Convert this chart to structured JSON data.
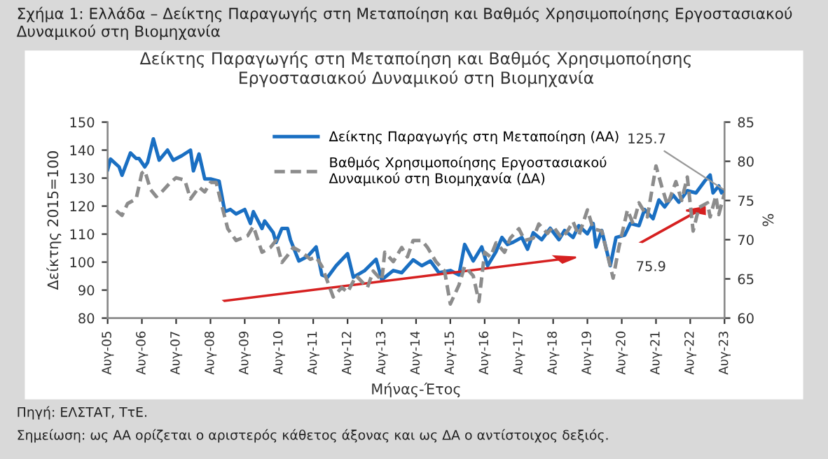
{
  "chart_data": {
    "type": "line",
    "title": "Σχήμα 1: Ελλάδα – Δείκτης Παραγωγής στη Μεταποίηση και Βαθμός Χρησιμοποίησης Εργοστασιακού Δυναμικού στη Βιομηχανία",
    "subtitle": "Δείκτης Παραγωγής στη Μεταποίηση και Βαθμός Χρησιμοποίησης\nΕργοστασιακού Δυναμικού στη Βιομηχανία",
    "xlabel": "Μήνας-Έτος",
    "ylabel": "Δείκτης 2015=100",
    "y2label": "%",
    "annotations": [
      {
        "text": "125.7",
        "x": "2023-08",
        "y": 125.7
      },
      "75.9",
      "Πηγή: ΕΛΣΤΑΤ, ΤτΕ.",
      "Σημείωση: ως ΑΑ ορίζεται ο αριστερός κάθετος άξονας και ως ΔΑ ο αντίστοιχος δεξιός."
    ],
    "series": [
      {
        "name": "Δείκτης Παραγωγής στη Μεταποίηση (ΑΑ)",
        "color": "#1a6fc2",
        "line_style": "solid",
        "x": [
          "2005-08",
          "2005-09",
          "2005-12",
          "2006-01",
          "2006-04",
          "2006-06",
          "2006-07",
          "2006-09",
          "2006-10",
          "2006-12",
          "2007-02",
          "2007-05",
          "2007-07",
          "2007-10",
          "2008-01",
          "2008-02",
          "2008-04",
          "2008-06",
          "2008-08",
          "2008-11",
          "2009-01",
          "2009-03",
          "2009-05",
          "2009-08",
          "2009-10",
          "2009-11",
          "2010-02",
          "2010-03",
          "2010-06",
          "2010-07",
          "2010-09",
          "2010-11",
          "2010-12",
          "2011-03",
          "2011-06",
          "2011-09",
          "2011-11",
          "2012-01",
          "2012-04",
          "2012-08",
          "2012-10",
          "2013-02",
          "2013-06",
          "2013-08",
          "2013-12",
          "2014-03",
          "2014-07",
          "2014-10",
          "2015-01",
          "2015-04",
          "2015-08",
          "2015-11",
          "2016-01",
          "2016-04",
          "2016-07",
          "2016-09",
          "2016-12",
          "2017-02",
          "2017-04",
          "2017-06",
          "2017-09",
          "2017-11",
          "2018-01",
          "2018-04",
          "2018-07",
          "2018-10",
          "2018-12",
          "2019-03",
          "2019-05",
          "2019-08",
          "2019-10",
          "2019-11",
          "2020-01",
          "2020-04",
          "2020-06",
          "2020-09",
          "2020-11",
          "2021-02",
          "2021-04",
          "2021-07",
          "2021-09",
          "2021-11",
          "2022-02",
          "2022-04",
          "2022-07",
          "2022-10",
          "2023-01",
          "2023-03",
          "2023-04",
          "2023-06",
          "2023-07",
          "2023-08"
        ],
        "values": [
          133,
          136.8,
          134,
          131,
          139,
          137,
          137,
          134,
          135.6,
          144,
          136.4,
          140,
          136.4,
          138,
          140,
          132.6,
          138.6,
          129.7,
          129.7,
          128.9,
          118,
          118.8,
          117.2,
          118.8,
          113.8,
          118,
          112,
          114.7,
          110.5,
          107,
          112,
          112,
          108,
          100.4,
          102,
          105.4,
          95.4,
          94.6,
          98.7,
          103,
          94.6,
          97,
          101,
          93.7,
          97,
          96.2,
          100.8,
          98.7,
          100.4,
          96.2,
          97,
          95.4,
          106.3,
          100.4,
          105.4,
          98.7,
          103.8,
          108.8,
          106.3,
          107.1,
          108.8,
          104.6,
          110.5,
          108,
          112.1,
          108,
          111.3,
          108.8,
          113,
          110.1,
          113.8,
          105.4,
          111.3,
          98.7,
          108.8,
          109.6,
          113.8,
          113,
          118.8,
          115.5,
          122.2,
          119.7,
          123.9,
          121.4,
          125.5,
          124.7,
          128.9,
          131.1,
          124.7,
          127.2,
          124.7,
          125.7
        ]
      },
      {
        "name": "Βαθμός Χρησιμοποίησης Εργοστασιακού\nΔυναμικού στη Βιομηχανία (ΔΑ)",
        "color": "#8c8c8c",
        "line_style": "dashed",
        "axis": "y2",
        "x": [
          "2005-11",
          "2006-01",
          "2006-03",
          "2006-06",
          "2006-08",
          "2006-09",
          "2006-11",
          "2007-01",
          "2007-03",
          "2007-06",
          "2007-08",
          "2007-11",
          "2008-01",
          "2008-04",
          "2008-06",
          "2008-08",
          "2008-10",
          "2008-12",
          "2009-02",
          "2009-05",
          "2009-09",
          "2009-11",
          "2010-02",
          "2010-05",
          "2010-07",
          "2010-09",
          "2010-11",
          "2011-01",
          "2011-04",
          "2011-07",
          "2011-09",
          "2011-11",
          "2012-03",
          "2012-06",
          "2012-08",
          "2012-11",
          "2013-03",
          "2013-05",
          "2013-08",
          "2013-09",
          "2013-12",
          "2014-03",
          "2014-05",
          "2014-07",
          "2014-10",
          "2014-12",
          "2015-03",
          "2015-06",
          "2015-08",
          "2015-11",
          "2016-01",
          "2016-04",
          "2016-06",
          "2016-08",
          "2016-10",
          "2016-12",
          "2017-03",
          "2017-05",
          "2017-08",
          "2017-10",
          "2018-01",
          "2018-03",
          "2018-06",
          "2018-08",
          "2018-11",
          "2019-01",
          "2019-03",
          "2019-05",
          "2019-08",
          "2019-10",
          "2020-01",
          "2020-05",
          "2020-07",
          "2020-10",
          "2020-12",
          "2021-02",
          "2021-05",
          "2021-08",
          "2021-10",
          "2021-12",
          "2022-03",
          "2022-05",
          "2022-07",
          "2022-09",
          "2022-11",
          "2023-02",
          "2023-03",
          "2023-05",
          "2023-06",
          "2023-08"
        ],
        "values": [
          73.7,
          73.1,
          74.6,
          75.2,
          78.5,
          78.8,
          76.4,
          75.5,
          76.1,
          77.3,
          77.9,
          77.6,
          75.2,
          76.7,
          76.1,
          77.3,
          77.3,
          74.3,
          71.4,
          69.9,
          70.5,
          71.7,
          68.4,
          69.0,
          69.9,
          67.1,
          68.0,
          69.0,
          68.4,
          67.5,
          67.8,
          66.6,
          62.7,
          63.9,
          63.3,
          65.4,
          63.9,
          66.0,
          64.8,
          68.4,
          67.2,
          69.0,
          67.8,
          69.9,
          69.9,
          69.0,
          67.2,
          66.0,
          61.8,
          64.2,
          66.6,
          65.4,
          62.1,
          68.4,
          67.8,
          69.6,
          68.4,
          70.2,
          71.4,
          69.9,
          70.2,
          72.0,
          70.8,
          71.7,
          70.2,
          71.1,
          72.3,
          70.5,
          73.8,
          71.4,
          71.1,
          65.1,
          69.0,
          73.8,
          72.0,
          74.7,
          72.9,
          79.4,
          76.8,
          74.4,
          77.4,
          75.0,
          78.0,
          71.1,
          74.1,
          74.7,
          72.9,
          75.6,
          73.2,
          75.9
        ]
      }
    ],
    "xlim": [
      "2005-08",
      "2023-08"
    ],
    "xticks": [
      {
        "value": "2005-08",
        "label": "Αυγ-05"
      },
      {
        "value": "2006-08",
        "label": "Αυγ-06"
      },
      {
        "value": "2007-08",
        "label": "Αυγ-07"
      },
      {
        "value": "2008-08",
        "label": "Αυγ-08"
      },
      {
        "value": "2009-08",
        "label": "Αυγ-09"
      },
      {
        "value": "2010-08",
        "label": "Αυγ-10"
      },
      {
        "value": "2011-08",
        "label": "Αυγ-11"
      },
      {
        "value": "2012-08",
        "label": "Αυγ-12"
      },
      {
        "value": "2013-08",
        "label": "Αυγ-13"
      },
      {
        "value": "2014-08",
        "label": "Αυγ-14"
      },
      {
        "value": "2015-08",
        "label": "Αυγ-15"
      },
      {
        "value": "2016-08",
        "label": "Αυγ-16"
      },
      {
        "value": "2017-08",
        "label": "Αυγ-17"
      },
      {
        "value": "2018-08",
        "label": "Αυγ-18"
      },
      {
        "value": "2019-08",
        "label": "Αυγ-19"
      },
      {
        "value": "2020-08",
        "label": "Αυγ-20"
      },
      {
        "value": "2021-08",
        "label": "Αυγ-21"
      },
      {
        "value": "2022-08",
        "label": "Αυγ-22"
      },
      {
        "value": "2023-08",
        "label": "Αυγ-23"
      }
    ],
    "ylim": [
      80,
      150
    ],
    "yticks": [
      80,
      90,
      100,
      110,
      120,
      130,
      140,
      150
    ],
    "y2lim": [
      60,
      85
    ],
    "y2ticks": [
      60,
      65,
      70,
      75,
      80,
      85
    ],
    "grid": false,
    "legend": "top",
    "marker": "none"
  }
}
